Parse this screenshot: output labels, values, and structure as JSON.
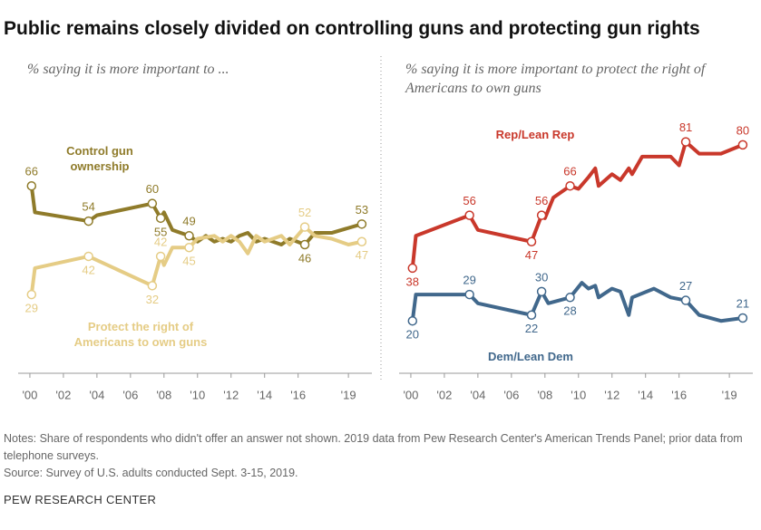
{
  "title": "Public remains closely divided on controlling guns and protecting gun rights",
  "notes": "Notes: Share of respondents who didn't offer an answer not shown. 2019 data from Pew Research Center's American Trends Panel; prior data from telephone surveys.",
  "source": "Source: Survey of U.S. adults conducted Sept. 3-15, 2019.",
  "footer": "PEW RESEARCH CENTER",
  "chart_data": [
    {
      "type": "line",
      "subtitle": "% saying it is more important to ...",
      "xlim": [
        1999.3,
        2020.4
      ],
      "ylim": [
        0,
        92
      ],
      "xticks": [
        {
          "value": 2000,
          "label": "'00"
        },
        {
          "value": 2002,
          "label": "'02"
        },
        {
          "value": 2004,
          "label": "'04"
        },
        {
          "value": 2006,
          "label": "'06"
        },
        {
          "value": 2008,
          "label": "'08"
        },
        {
          "value": 2010,
          "label": "'10"
        },
        {
          "value": 2012,
          "label": "'12"
        },
        {
          "value": 2014,
          "label": "'14"
        },
        {
          "value": 2016,
          "label": "'16"
        },
        {
          "value": 2019,
          "label": "'19"
        }
      ],
      "series": [
        {
          "name": "Control gun ownership",
          "color": "#8f7b2a",
          "x": [
            2000.1,
            2000.3,
            2003.5,
            2004,
            2007.3,
            2007.8,
            2008,
            2008.5,
            2009.5,
            2010,
            2010.5,
            2011,
            2011.5,
            2012,
            2012.5,
            2013,
            2013.5,
            2014,
            2015,
            2015.5,
            2016.4,
            2017,
            2018,
            2019.8
          ],
          "values": [
            66,
            57,
            54,
            56,
            60,
            55,
            57,
            51,
            49,
            47,
            49,
            47,
            48,
            47,
            49,
            50,
            47,
            48,
            46,
            48,
            46,
            50,
            50,
            53
          ],
          "markers": [
            0,
            2,
            4,
            5,
            8,
            20,
            23
          ]
        },
        {
          "name": "Protect the right of Americans to own guns",
          "color": "#e5cc85",
          "x": [
            2000.1,
            2000.3,
            2003.5,
            2007.3,
            2007.8,
            2008,
            2008.5,
            2009.5,
            2010,
            2011,
            2011.5,
            2012,
            2012.5,
            2013,
            2013.5,
            2014,
            2015,
            2015.5,
            2016.4,
            2017,
            2018,
            2019,
            2019.8
          ],
          "values": [
            29,
            38,
            42,
            32,
            42,
            39,
            45,
            45,
            48,
            49,
            47,
            49,
            47,
            43,
            49,
            47,
            49,
            46,
            52,
            49,
            48,
            46,
            47
          ],
          "markers": [
            0,
            2,
            3,
            4,
            7,
            18,
            22
          ]
        }
      ]
    },
    {
      "type": "line",
      "subtitle": "% saying it is more important to protect the right of Americans to own guns",
      "xlim": [
        1999.3,
        2020.4
      ],
      "ylim": [
        0,
        92
      ],
      "xticks": [
        {
          "value": 2000,
          "label": "'00"
        },
        {
          "value": 2002,
          "label": "'02"
        },
        {
          "value": 2004,
          "label": "'04"
        },
        {
          "value": 2006,
          "label": "'06"
        },
        {
          "value": 2008,
          "label": "'08"
        },
        {
          "value": 2010,
          "label": "'10"
        },
        {
          "value": 2012,
          "label": "'12"
        },
        {
          "value": 2014,
          "label": "'14"
        },
        {
          "value": 2016,
          "label": "'16"
        },
        {
          "value": 2019,
          "label": "'19"
        }
      ],
      "series": [
        {
          "name": "Rep/Lean Rep",
          "color": "#c9382b",
          "x": [
            2000.1,
            2000.3,
            2003.5,
            2004,
            2007.2,
            2007.8,
            2008,
            2008.5,
            2009.5,
            2010,
            2010.6,
            2011,
            2011.2,
            2012,
            2012.5,
            2013,
            2013.2,
            2013.8,
            2015.5,
            2016,
            2016.4,
            2017.2,
            2018.5,
            2019.8
          ],
          "values": [
            38,
            49,
            56,
            51,
            47,
            56,
            55,
            62,
            66,
            65,
            69,
            72,
            66,
            70,
            68,
            72,
            70,
            76,
            76,
            73,
            81,
            77,
            77,
            80
          ],
          "markers": [
            0,
            2,
            4,
            5,
            8,
            20,
            23
          ]
        },
        {
          "name": "Dem/Lean Dem",
          "color": "#41688c",
          "x": [
            2000.1,
            2000.3,
            2003.5,
            2004,
            2007.2,
            2007.8,
            2008.2,
            2009.5,
            2010.2,
            2010.6,
            2011,
            2011.2,
            2012,
            2012.5,
            2013,
            2013.2,
            2014.5,
            2015.5,
            2016.4,
            2017.2,
            2018.5,
            2019.8
          ],
          "values": [
            20,
            29,
            29,
            26,
            22,
            30,
            26,
            28,
            33,
            31,
            32,
            28,
            31,
            30,
            22,
            28,
            31,
            28,
            27,
            22,
            20,
            21
          ],
          "markers": [
            0,
            2,
            4,
            5,
            7,
            18,
            21
          ]
        }
      ]
    }
  ]
}
